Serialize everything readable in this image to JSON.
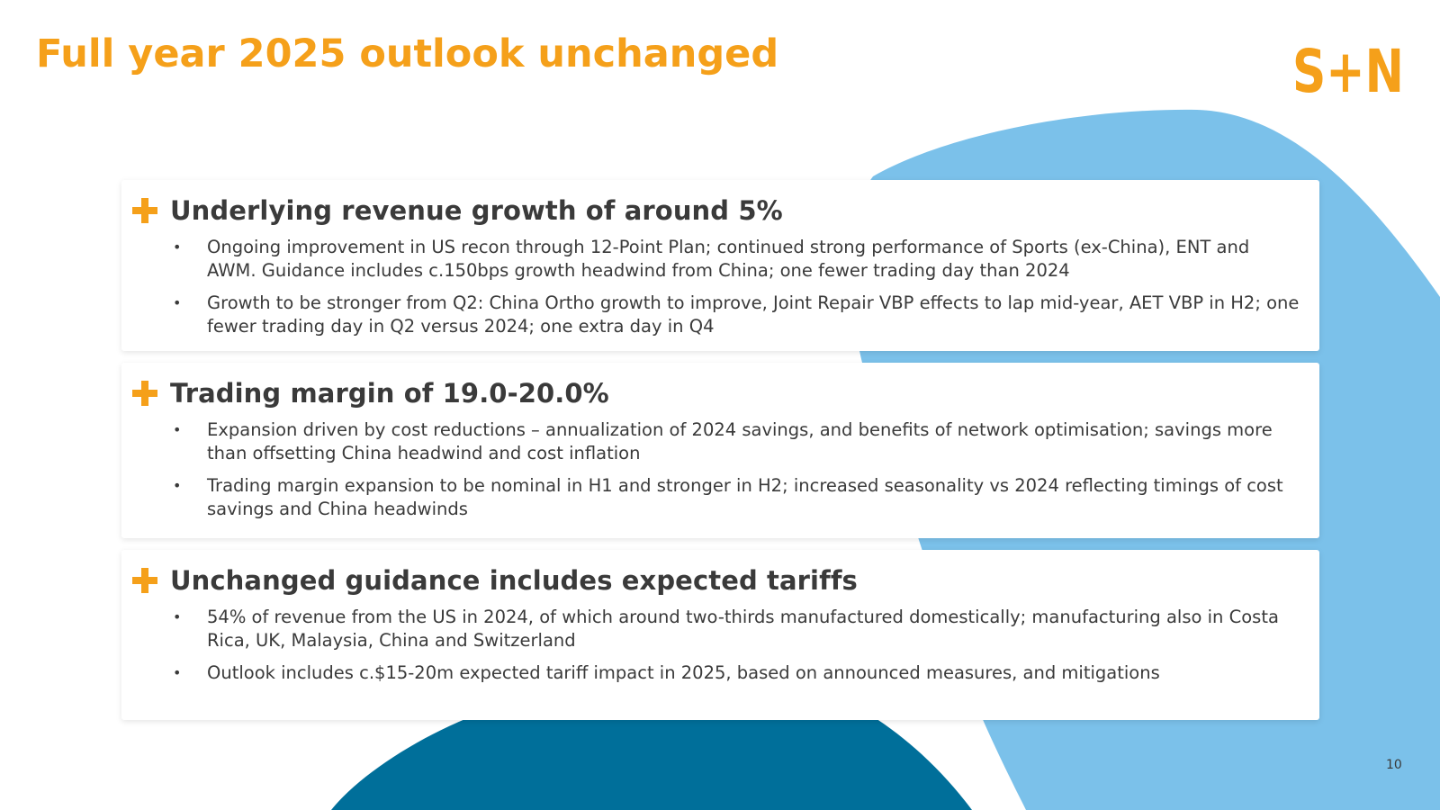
{
  "title": "Full year 2025 outlook unchanged",
  "logo": {
    "text": "S+N",
    "icon": "smith-nephew-logo",
    "color": "#F5A01A"
  },
  "colors": {
    "accent": "#F5A01A",
    "light_blue": "#7BC1EA",
    "dark_blue": "#006F9A",
    "text": "#3A3A3A"
  },
  "sections": [
    {
      "icon": "plus-icon",
      "heading": "Underlying revenue growth of around 5%",
      "bullets": [
        "Ongoing improvement in US recon through 12-Point Plan; continued strong performance of Sports (ex-China), ENT and AWM. Guidance includes c.150bps growth headwind from China; one fewer trading day than 2024",
        "Growth to be stronger from Q2: China Ortho growth to improve, Joint Repair VBP effects to lap mid-year, AET VBP in H2; one fewer trading day in Q2 versus 2024; one extra day in Q4"
      ]
    },
    {
      "icon": "plus-icon",
      "heading": "Trading margin of 19.0-20.0%",
      "bullets": [
        "Expansion driven by cost reductions – annualization of 2024 savings, and benefits of network optimisation; savings more than offsetting China headwind and cost inflation",
        "Trading margin expansion to be nominal in H1 and stronger in H2; increased seasonality vs 2024 reflecting timings of cost savings and China headwinds"
      ]
    },
    {
      "icon": "plus-icon",
      "heading": "Unchanged guidance includes expected tariffs",
      "bullets": [
        "54% of revenue from the US in 2024, of which around two-thirds manufactured domestically; manufacturing also in Costa Rica, UK, Malaysia, China and Switzerland",
        "Outlook includes c.$15-20m expected tariff impact in 2025, based on announced measures, and mitigations"
      ]
    }
  ],
  "bullet_glyph": "•",
  "page_number": "10"
}
